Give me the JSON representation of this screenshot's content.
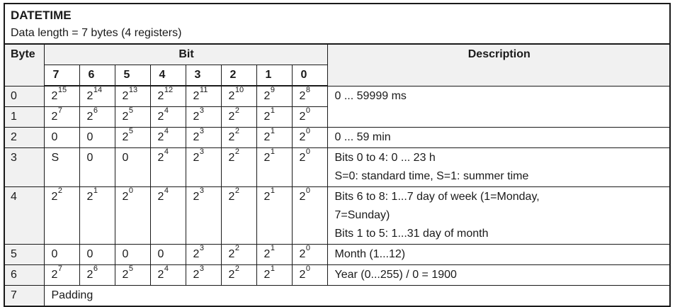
{
  "colors": {
    "border": "#1a1a1a",
    "header_bg": "#f1f1f1",
    "text": "#1a1a1a",
    "page_bg": "#ffffff"
  },
  "title_block": {
    "title": "DATETIME",
    "subtitle": "Data length = 7 bytes (4 registers)"
  },
  "table": {
    "column_headers": {
      "byte": "Byte",
      "bit_group": "Bit",
      "description": "Description"
    },
    "bit_numbers": [
      "7",
      "6",
      "5",
      "4",
      "3",
      "2",
      "1",
      "0"
    ],
    "rows": [
      {
        "byte": "0",
        "bits": [
          "2^15",
          "2^14",
          "2^13",
          "2^12",
          "2^11",
          "2^10",
          "2^9",
          "2^8"
        ],
        "description": "0 ... 59999 ms",
        "description_rowspan": 2
      },
      {
        "byte": "1",
        "bits": [
          "2^7",
          "2^6",
          "2^5",
          "2^4",
          "2^3",
          "2^2",
          "2^1",
          "2^0"
        ],
        "description": null
      },
      {
        "byte": "2",
        "bits": [
          "0",
          "0",
          "2^5",
          "2^4",
          "2^3",
          "2^2",
          "2^1",
          "2^0"
        ],
        "description": "0 ... 59 min"
      },
      {
        "byte": "3",
        "bits": [
          "S",
          "0",
          "0",
          "2^4",
          "2^3",
          "2^2",
          "2^1",
          "2^0"
        ],
        "description": "Bits 0 to 4: 0 ... 23 h\nS=0: standard time, S=1: summer time"
      },
      {
        "byte": "4",
        "bits": [
          "2^2",
          "2^1",
          "2^0",
          "2^4",
          "2^3",
          "2^2",
          "2^1",
          "2^0"
        ],
        "description": "Bits 6 to 8: 1...7 day of week (1=Monday,\n7=Sunday)\nBits 1 to 5: 1...31 day of month"
      },
      {
        "byte": "5",
        "bits": [
          "0",
          "0",
          "0",
          "0",
          "2^3",
          "2^2",
          "2^1",
          "2^0"
        ],
        "description": "Month (1...12)"
      },
      {
        "byte": "6",
        "bits": [
          "2^7",
          "2^6",
          "2^5",
          "2^4",
          "2^3",
          "2^2",
          "2^1",
          "2^0"
        ],
        "description": "Year (0...255) / 0 = 1900"
      },
      {
        "byte": "7",
        "full_row": "Padding"
      }
    ]
  }
}
